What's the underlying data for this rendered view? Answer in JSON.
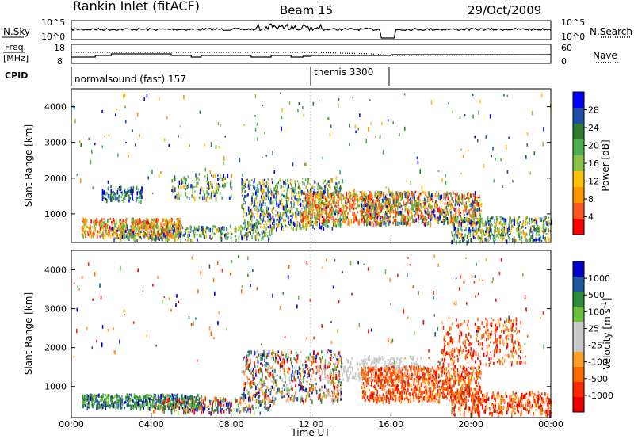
{
  "header": {
    "station": "Rankin Inlet (fitACF)",
    "beam": "Beam 15",
    "date": "29/Oct/2009"
  },
  "panels": {
    "nsky": {
      "label": "N.Sky",
      "right_label": "N.Search",
      "left_ticks": [
        "10^5",
        "10^0"
      ],
      "right_ticks": [
        "10^5",
        "10^0"
      ]
    },
    "freq": {
      "label_top": "Freq.",
      "label_bottom": "[MHz]",
      "right_label": "Nave",
      "left_ticks": [
        "18",
        "8"
      ],
      "right_ticks": [
        "60",
        "0"
      ]
    },
    "cpid": {
      "label": "CPID",
      "programs": [
        "normalsound (fast) 157",
        "themis 3300"
      ]
    }
  },
  "colors": {
    "power_scale": [
      "#0000ff",
      "#1e4fa8",
      "#2e7d32",
      "#4caf50",
      "#8bc34a",
      "#ffc107",
      "#ff9800",
      "#ff5722",
      "#ff0000"
    ],
    "velocity_scale": [
      "#0000cc",
      "#1f5aa0",
      "#2e8b3a",
      "#6abf3c",
      "#c8c8c8",
      "#c8c8c8",
      "#ff9f2a",
      "#ff6a00",
      "#ff2a00",
      "#ee0000"
    ]
  },
  "chart_data": [
    {
      "type": "heatmap",
      "name": "power",
      "ylabel": "Slant Range [km]",
      "yticks": [
        "1000",
        "2000",
        "3000",
        "4000"
      ],
      "ylim": [
        200,
        4500
      ],
      "xlim": [
        0,
        24
      ],
      "colorbar_label": "Power [dB]",
      "colorbar_ticks": [
        "28",
        "24",
        "20",
        "16",
        "12",
        "8",
        "4"
      ],
      "colorbar_range": [
        0,
        30
      ]
    },
    {
      "type": "heatmap",
      "name": "velocity",
      "ylabel": "Slant Range [km]",
      "yticks": [
        "1000",
        "2000",
        "3000",
        "4000"
      ],
      "ylim": [
        200,
        4500
      ],
      "xlim": [
        0,
        24
      ],
      "xlabel": "Time UT",
      "xticks": [
        "00:00",
        "04:00",
        "08:00",
        "12:00",
        "16:00",
        "20:00",
        "00:00"
      ],
      "colorbar_label": "Velocity [m s",
      "colorbar_unit_sup": "-1",
      "colorbar_unit_close": "]",
      "colorbar_ticks": [
        "1000",
        "500",
        "100",
        "25",
        "-25",
        "-100",
        "-500",
        "-1000"
      ]
    }
  ]
}
